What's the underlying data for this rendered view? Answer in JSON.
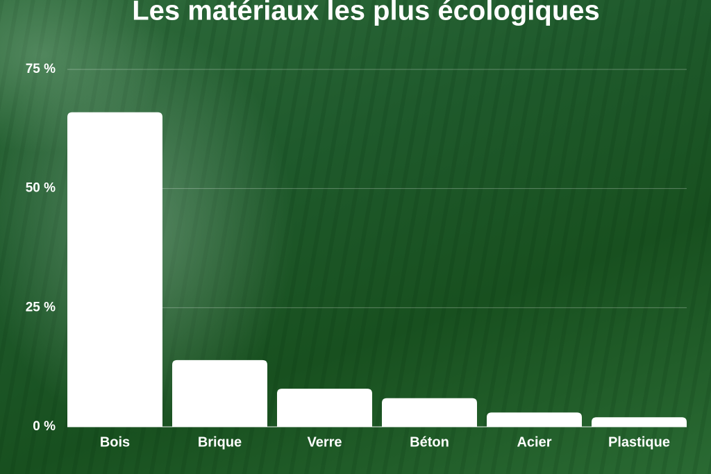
{
  "chart_data": {
    "type": "bar",
    "title": "Les matériaux les plus écologiques",
    "categories": [
      "Bois",
      "Brique",
      "Verre",
      "Béton",
      "Acier",
      "Plastique"
    ],
    "values": [
      66,
      14,
      8,
      6,
      3,
      2
    ],
    "color": "#ffffff",
    "ylim": [
      0,
      75
    ],
    "yticks": [
      {
        "value": 0,
        "label": "0 %"
      },
      {
        "value": 25,
        "label": "25 %"
      },
      {
        "value": 50,
        "label": "50 %"
      },
      {
        "value": 75,
        "label": "75 %"
      }
    ],
    "grid": true
  }
}
